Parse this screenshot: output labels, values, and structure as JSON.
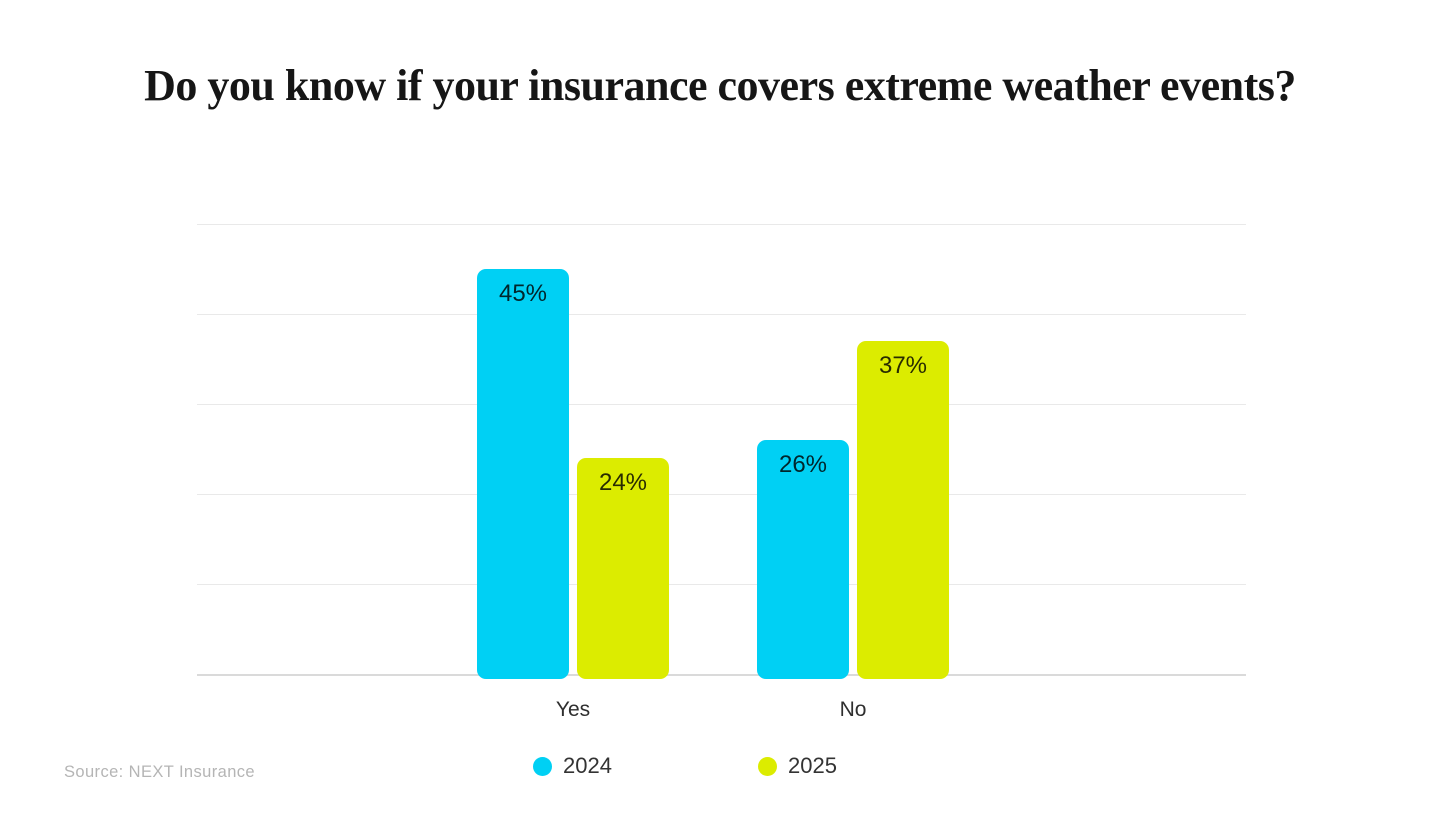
{
  "title": "Do you know if your insurance covers extreme weather events?",
  "source_note": "Source: NEXT Insurance",
  "chart_data": {
    "type": "bar",
    "title": "Do you know if your insurance covers extreme weather events?",
    "categories": [
      "Yes",
      "No"
    ],
    "series": [
      {
        "name": "2024",
        "color": "#00D0F4",
        "values": [
          45,
          26
        ]
      },
      {
        "name": "2025",
        "color": "#DCEC00",
        "values": [
          24,
          37
        ]
      }
    ],
    "value_suffix": "%",
    "ylim": [
      0,
      50
    ],
    "gridline_step": 10,
    "grid": "horizontal-only",
    "data_labels": "inside-top",
    "legend_position": "bottom-center",
    "source": "Source: NEXT Insurance"
  }
}
